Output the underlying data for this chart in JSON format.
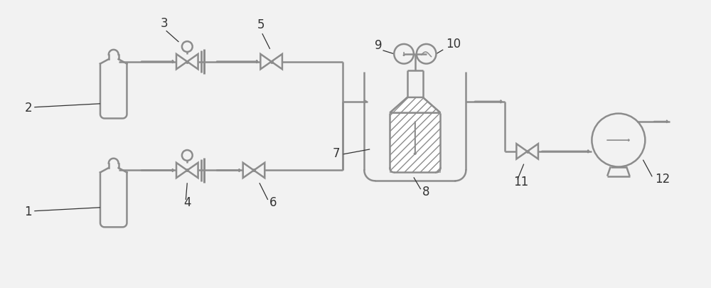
{
  "bg_color": "#f2f2f2",
  "line_color": "#8c8c8c",
  "label_color": "#333333",
  "lw": 1.8,
  "fs": 12
}
